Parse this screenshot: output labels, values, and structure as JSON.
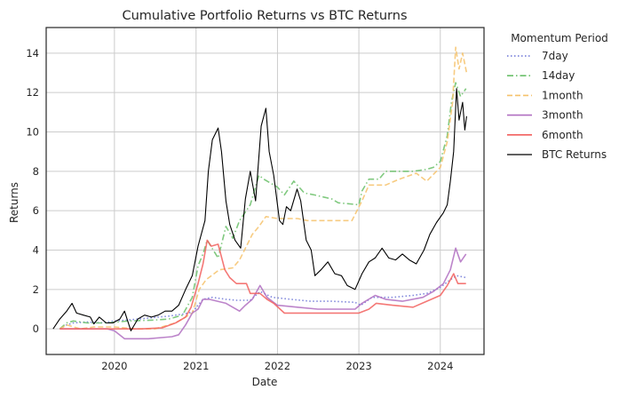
{
  "chart_data": {
    "type": "line",
    "title": "Cumulative Portfolio Returns vs BTC Returns",
    "xlabel": "Date",
    "ylabel": "Returns",
    "xlim": [
      "2019-03-01",
      "2024-07-15"
    ],
    "ylim": [
      -1.3,
      15.3
    ],
    "x_ticks": [
      "2020",
      "2021",
      "2022",
      "2023",
      "2024"
    ],
    "y_ticks": [
      0,
      2,
      4,
      6,
      8,
      10,
      12,
      14
    ],
    "grid": true,
    "legend": {
      "title": "Momentum Period",
      "placement": "outside-top-right"
    },
    "series": [
      {
        "name": "7day",
        "color": "#6b74d6",
        "dash": "dotted",
        "points": [
          [
            "2019-05-01",
            0.0
          ],
          [
            "2019-06-01",
            0.2
          ],
          [
            "2019-07-01",
            0.3
          ],
          [
            "2019-09-01",
            0.35
          ],
          [
            "2019-11-01",
            0.3
          ],
          [
            "2020-01-01",
            0.4
          ],
          [
            "2020-03-01",
            0.45
          ],
          [
            "2020-06-01",
            0.55
          ],
          [
            "2020-09-01",
            0.65
          ],
          [
            "2020-11-01",
            0.75
          ],
          [
            "2020-12-15",
            0.85
          ],
          [
            "2021-01-10",
            1.2
          ],
          [
            "2021-02-01",
            1.5
          ],
          [
            "2021-03-15",
            1.6
          ],
          [
            "2021-05-15",
            1.5
          ],
          [
            "2021-07-01",
            1.45
          ],
          [
            "2021-09-01",
            1.45
          ],
          [
            "2021-10-15",
            1.9
          ],
          [
            "2021-11-10",
            1.75
          ],
          [
            "2021-12-10",
            1.6
          ],
          [
            "2022-03-01",
            1.5
          ],
          [
            "2022-06-01",
            1.4
          ],
          [
            "2022-09-01",
            1.4
          ],
          [
            "2022-12-15",
            1.35
          ],
          [
            "2023-01-10",
            1.2
          ],
          [
            "2023-03-01",
            1.6
          ],
          [
            "2023-06-01",
            1.6
          ],
          [
            "2023-09-01",
            1.7
          ],
          [
            "2023-11-01",
            1.8
          ],
          [
            "2024-01-01",
            2.1
          ],
          [
            "2024-02-15",
            2.5
          ],
          [
            "2024-03-15",
            2.7
          ],
          [
            "2024-04-25",
            2.6
          ]
        ]
      },
      {
        "name": "14day",
        "color": "#6abf69",
        "dash": "dashdot",
        "points": [
          [
            "2019-05-01",
            0.0
          ],
          [
            "2019-06-01",
            0.3
          ],
          [
            "2019-07-01",
            0.4
          ],
          [
            "2019-09-01",
            0.3
          ],
          [
            "2019-12-01",
            0.3
          ],
          [
            "2020-03-01",
            0.4
          ],
          [
            "2020-07-01",
            0.45
          ],
          [
            "2020-09-01",
            0.5
          ],
          [
            "2020-11-01",
            0.7
          ],
          [
            "2020-12-15",
            1.6
          ],
          [
            "2021-01-10",
            3.2
          ],
          [
            "2021-02-01",
            3.8
          ],
          [
            "2021-02-20",
            4.5
          ],
          [
            "2021-04-10",
            3.6
          ],
          [
            "2021-05-15",
            5.2
          ],
          [
            "2021-06-15",
            4.6
          ],
          [
            "2021-07-15",
            5.5
          ],
          [
            "2021-09-01",
            6.3
          ],
          [
            "2021-10-10",
            7.8
          ],
          [
            "2021-11-01",
            7.6
          ],
          [
            "2022-01-01",
            7.2
          ],
          [
            "2022-02-01",
            6.8
          ],
          [
            "2022-03-15",
            7.5
          ],
          [
            "2022-05-01",
            6.9
          ],
          [
            "2022-06-15",
            6.8
          ],
          [
            "2022-09-01",
            6.6
          ],
          [
            "2022-10-01",
            6.4
          ],
          [
            "2023-01-01",
            6.3
          ],
          [
            "2023-01-15",
            7.0
          ],
          [
            "2023-02-15",
            7.6
          ],
          [
            "2023-04-01",
            7.6
          ],
          [
            "2023-05-01",
            8.0
          ],
          [
            "2023-09-01",
            8.0
          ],
          [
            "2023-11-01",
            8.1
          ],
          [
            "2023-12-01",
            8.2
          ],
          [
            "2024-01-01",
            8.5
          ],
          [
            "2024-02-01",
            9.8
          ],
          [
            "2024-02-20",
            11.5
          ],
          [
            "2024-03-10",
            12.5
          ],
          [
            "2024-04-01",
            11.8
          ],
          [
            "2024-04-25",
            12.2
          ]
        ]
      },
      {
        "name": "1month",
        "color": "#f6c26b",
        "dash": "dashed",
        "points": [
          [
            "2019-05-01",
            0.0
          ],
          [
            "2019-06-01",
            0.2
          ],
          [
            "2019-08-01",
            0.0
          ],
          [
            "2019-10-01",
            0.1
          ],
          [
            "2020-01-01",
            0.1
          ],
          [
            "2020-04-01",
            0.0
          ],
          [
            "2020-07-01",
            0.0
          ],
          [
            "2020-10-01",
            0.3
          ],
          [
            "2020-12-15",
            0.8
          ],
          [
            "2021-01-15",
            2.0
          ],
          [
            "2021-02-15",
            2.5
          ],
          [
            "2021-04-15",
            3.0
          ],
          [
            "2021-06-15",
            3.1
          ],
          [
            "2021-07-15",
            3.5
          ],
          [
            "2021-08-15",
            4.2
          ],
          [
            "2021-09-10",
            4.8
          ],
          [
            "2021-10-10",
            5.2
          ],
          [
            "2021-11-10",
            5.7
          ],
          [
            "2022-01-01",
            5.6
          ],
          [
            "2022-04-01",
            5.6
          ],
          [
            "2022-05-15",
            5.5
          ],
          [
            "2022-09-01",
            5.5
          ],
          [
            "2022-12-01",
            5.5
          ],
          [
            "2023-01-15",
            6.5
          ],
          [
            "2023-02-15",
            7.3
          ],
          [
            "2023-05-01",
            7.3
          ],
          [
            "2023-07-01",
            7.6
          ],
          [
            "2023-09-15",
            7.9
          ],
          [
            "2023-11-01",
            7.5
          ],
          [
            "2024-01-01",
            8.2
          ],
          [
            "2024-02-01",
            9.5
          ],
          [
            "2024-02-25",
            11.5
          ],
          [
            "2024-03-10",
            14.3
          ],
          [
            "2024-03-25",
            13.2
          ],
          [
            "2024-04-10",
            14.0
          ],
          [
            "2024-04-28",
            13.0
          ]
        ]
      },
      {
        "name": "3month",
        "color": "#b06fc1",
        "dash": "solid",
        "points": [
          [
            "2019-05-01",
            0.0
          ],
          [
            "2019-06-01",
            0.0
          ],
          [
            "2019-09-01",
            0.0
          ],
          [
            "2019-12-01",
            0.0
          ],
          [
            "2020-01-01",
            -0.1
          ],
          [
            "2020-02-15",
            -0.5
          ],
          [
            "2020-06-01",
            -0.5
          ],
          [
            "2020-09-15",
            -0.4
          ],
          [
            "2020-10-15",
            -0.3
          ],
          [
            "2020-11-15",
            0.2
          ],
          [
            "2020-12-15",
            0.8
          ],
          [
            "2021-01-10",
            1.0
          ],
          [
            "2021-02-01",
            1.5
          ],
          [
            "2021-03-01",
            1.5
          ],
          [
            "2021-05-15",
            1.3
          ],
          [
            "2021-07-15",
            0.9
          ],
          [
            "2021-08-10",
            1.2
          ],
          [
            "2021-09-10",
            1.5
          ],
          [
            "2021-10-15",
            2.2
          ],
          [
            "2021-11-15",
            1.6
          ],
          [
            "2022-01-01",
            1.2
          ],
          [
            "2022-04-01",
            1.1
          ],
          [
            "2022-07-01",
            1.0
          ],
          [
            "2022-10-01",
            1.0
          ],
          [
            "2022-12-15",
            1.0
          ],
          [
            "2023-01-15",
            1.3
          ],
          [
            "2023-03-15",
            1.7
          ],
          [
            "2023-05-01",
            1.5
          ],
          [
            "2023-07-15",
            1.4
          ],
          [
            "2023-10-15",
            1.6
          ],
          [
            "2023-12-01",
            1.9
          ],
          [
            "2024-01-15",
            2.3
          ],
          [
            "2024-02-15",
            3.0
          ],
          [
            "2024-03-10",
            4.1
          ],
          [
            "2024-04-01",
            3.4
          ],
          [
            "2024-04-25",
            3.8
          ]
        ]
      },
      {
        "name": "6month",
        "color": "#f2605e",
        "dash": "solid",
        "points": [
          [
            "2019-05-01",
            0.0
          ],
          [
            "2019-07-01",
            0.0
          ],
          [
            "2019-11-01",
            0.0
          ],
          [
            "2020-02-01",
            0.0
          ],
          [
            "2020-05-01",
            0.0
          ],
          [
            "2020-08-01",
            0.05
          ],
          [
            "2020-10-01",
            0.3
          ],
          [
            "2020-11-15",
            0.6
          ],
          [
            "2020-12-10",
            1.1
          ],
          [
            "2021-01-10",
            2.3
          ],
          [
            "2021-02-01",
            3.3
          ],
          [
            "2021-02-20",
            4.5
          ],
          [
            "2021-03-10",
            4.2
          ],
          [
            "2021-04-10",
            4.3
          ],
          [
            "2021-05-10",
            3.0
          ],
          [
            "2021-06-01",
            2.6
          ],
          [
            "2021-07-01",
            2.3
          ],
          [
            "2021-08-15",
            2.3
          ],
          [
            "2021-09-01",
            1.8
          ],
          [
            "2021-10-15",
            1.8
          ],
          [
            "2021-11-15",
            1.5
          ],
          [
            "2021-12-15",
            1.3
          ],
          [
            "2022-02-01",
            0.8
          ],
          [
            "2022-06-01",
            0.8
          ],
          [
            "2022-10-01",
            0.8
          ],
          [
            "2023-01-01",
            0.8
          ],
          [
            "2023-02-15",
            1.0
          ],
          [
            "2023-03-20",
            1.3
          ],
          [
            "2023-06-01",
            1.2
          ],
          [
            "2023-09-01",
            1.1
          ],
          [
            "2023-11-01",
            1.4
          ],
          [
            "2024-01-01",
            1.7
          ],
          [
            "2024-02-01",
            2.2
          ],
          [
            "2024-03-01",
            2.8
          ],
          [
            "2024-03-20",
            2.3
          ],
          [
            "2024-04-25",
            2.3
          ]
        ]
      },
      {
        "name": "BTC Returns",
        "color": "#000000",
        "dash": "solid",
        "points": [
          [
            "2019-04-01",
            0.0
          ],
          [
            "2019-05-01",
            0.5
          ],
          [
            "2019-06-01",
            0.9
          ],
          [
            "2019-06-25",
            1.3
          ],
          [
            "2019-07-15",
            0.8
          ],
          [
            "2019-08-15",
            0.7
          ],
          [
            "2019-09-15",
            0.6
          ],
          [
            "2019-10-01",
            0.25
          ],
          [
            "2019-10-25",
            0.6
          ],
          [
            "2019-11-25",
            0.3
          ],
          [
            "2019-12-25",
            0.3
          ],
          [
            "2020-01-25",
            0.5
          ],
          [
            "2020-02-15",
            0.9
          ],
          [
            "2020-03-15",
            -0.1
          ],
          [
            "2020-04-15",
            0.5
          ],
          [
            "2020-05-15",
            0.7
          ],
          [
            "2020-06-15",
            0.6
          ],
          [
            "2020-07-15",
            0.7
          ],
          [
            "2020-08-15",
            0.9
          ],
          [
            "2020-09-15",
            0.9
          ],
          [
            "2020-10-15",
            1.2
          ],
          [
            "2020-11-15",
            2.0
          ],
          [
            "2020-12-15",
            2.7
          ],
          [
            "2021-01-10",
            4.2
          ],
          [
            "2021-02-10",
            5.5
          ],
          [
            "2021-02-25",
            8.0
          ],
          [
            "2021-03-15",
            9.6
          ],
          [
            "2021-04-10",
            10.2
          ],
          [
            "2021-04-25",
            9.0
          ],
          [
            "2021-05-15",
            6.5
          ],
          [
            "2021-06-01",
            5.3
          ],
          [
            "2021-06-25",
            4.5
          ],
          [
            "2021-07-20",
            4.1
          ],
          [
            "2021-08-10",
            6.6
          ],
          [
            "2021-09-01",
            8.0
          ],
          [
            "2021-09-25",
            6.5
          ],
          [
            "2021-10-20",
            10.3
          ],
          [
            "2021-11-10",
            11.2
          ],
          [
            "2021-11-25",
            9.0
          ],
          [
            "2021-12-15",
            7.8
          ],
          [
            "2022-01-10",
            5.5
          ],
          [
            "2022-01-25",
            5.3
          ],
          [
            "2022-02-10",
            6.2
          ],
          [
            "2022-03-01",
            6.0
          ],
          [
            "2022-03-30",
            7.1
          ],
          [
            "2022-04-15",
            6.5
          ],
          [
            "2022-05-10",
            4.5
          ],
          [
            "2022-06-01",
            4.0
          ],
          [
            "2022-06-18",
            2.7
          ],
          [
            "2022-07-15",
            3.0
          ],
          [
            "2022-08-15",
            3.4
          ],
          [
            "2022-09-15",
            2.8
          ],
          [
            "2022-10-15",
            2.7
          ],
          [
            "2022-11-10",
            2.2
          ],
          [
            "2022-12-15",
            2.0
          ],
          [
            "2023-01-15",
            2.8
          ],
          [
            "2023-02-15",
            3.4
          ],
          [
            "2023-03-15",
            3.6
          ],
          [
            "2023-04-15",
            4.1
          ],
          [
            "2023-05-15",
            3.6
          ],
          [
            "2023-06-15",
            3.5
          ],
          [
            "2023-07-15",
            3.8
          ],
          [
            "2023-08-15",
            3.5
          ],
          [
            "2023-09-15",
            3.3
          ],
          [
            "2023-10-20",
            4.0
          ],
          [
            "2023-11-15",
            4.8
          ],
          [
            "2023-12-15",
            5.4
          ],
          [
            "2024-01-15",
            5.9
          ],
          [
            "2024-02-01",
            6.3
          ],
          [
            "2024-02-15",
            7.5
          ],
          [
            "2024-03-01",
            9.0
          ],
          [
            "2024-03-14",
            12.2
          ],
          [
            "2024-03-25",
            10.6
          ],
          [
            "2024-04-10",
            11.5
          ],
          [
            "2024-04-20",
            10.1
          ],
          [
            "2024-04-28",
            10.8
          ]
        ]
      }
    ]
  }
}
